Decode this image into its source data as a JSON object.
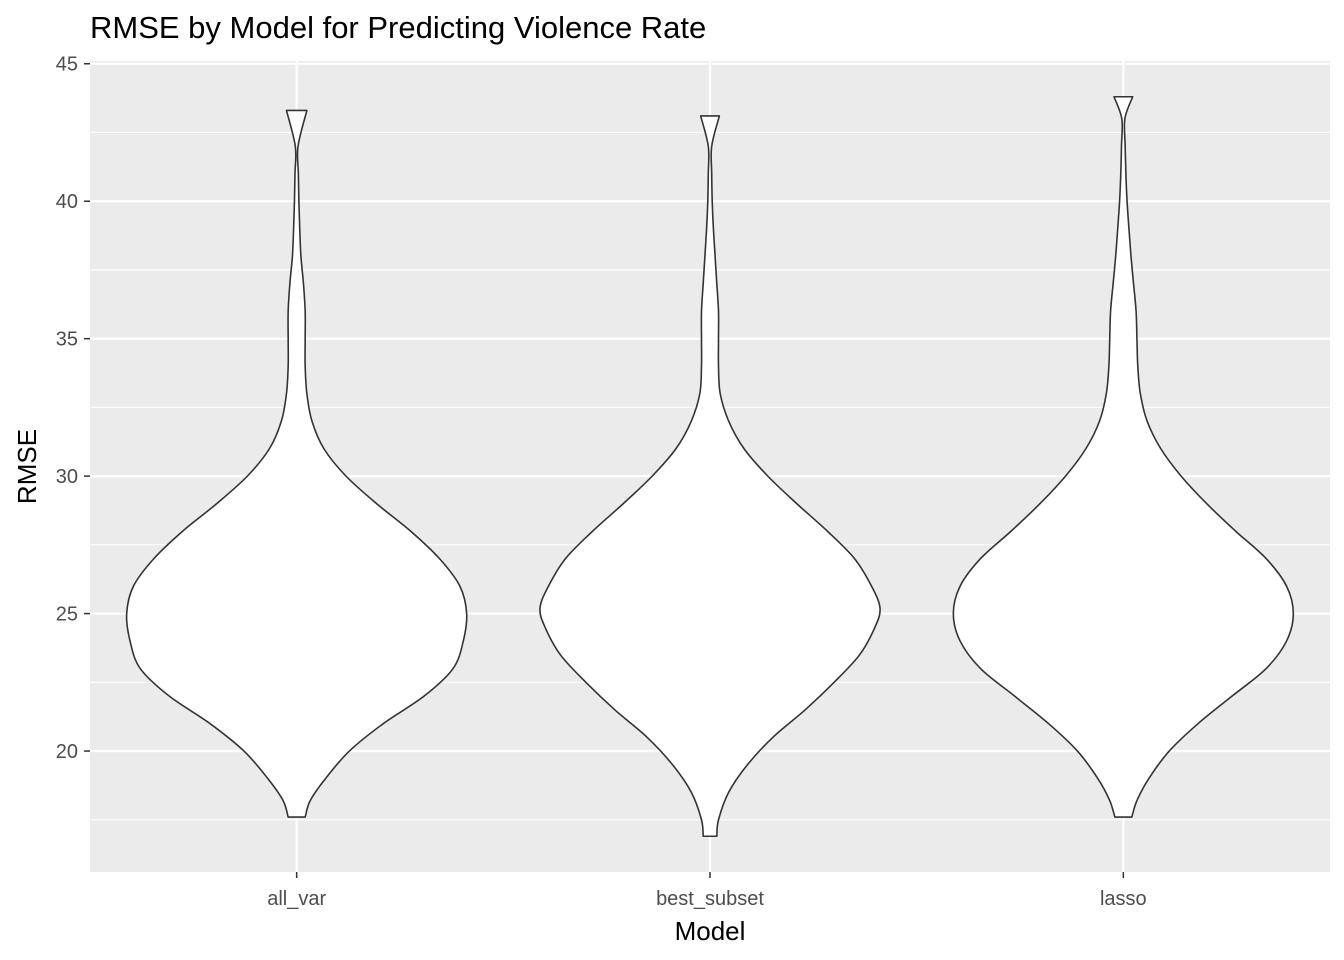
{
  "chart_data": {
    "type": "violin",
    "title": "RMSE by Model for Predicting Violence Rate",
    "xlabel": "Model",
    "ylabel": "RMSE",
    "categories": [
      "all_var",
      "best_subset",
      "lasso"
    ],
    "ylim": [
      15.6,
      45.1
    ],
    "yticks": [
      20,
      25,
      30,
      35,
      40,
      45
    ],
    "grid": true,
    "violins": [
      {
        "name": "all_var",
        "min": 17.6,
        "max": 43.3,
        "profile": [
          [
            17.6,
            0.05
          ],
          [
            18.2,
            0.08
          ],
          [
            19,
            0.17
          ],
          [
            20,
            0.31
          ],
          [
            21,
            0.51
          ],
          [
            22,
            0.75
          ],
          [
            23,
            0.92
          ],
          [
            24,
            0.98
          ],
          [
            25,
            1.0
          ],
          [
            26,
            0.96
          ],
          [
            27,
            0.84
          ],
          [
            28,
            0.67
          ],
          [
            29,
            0.47
          ],
          [
            30,
            0.29
          ],
          [
            31,
            0.16
          ],
          [
            32,
            0.09
          ],
          [
            33,
            0.06
          ],
          [
            34,
            0.05
          ],
          [
            35,
            0.05
          ],
          [
            36,
            0.05
          ],
          [
            37,
            0.04
          ],
          [
            38,
            0.025
          ],
          [
            39,
            0.018
          ],
          [
            40,
            0.013
          ],
          [
            41,
            0.01
          ],
          [
            42,
            0.008
          ],
          [
            43.3,
            0.06
          ]
        ]
      },
      {
        "name": "best_subset",
        "min": 16.9,
        "max": 43.1,
        "profile": [
          [
            16.9,
            0.04
          ],
          [
            17.5,
            0.05
          ],
          [
            18.5,
            0.11
          ],
          [
            19.5,
            0.22
          ],
          [
            20.5,
            0.37
          ],
          [
            21.5,
            0.56
          ],
          [
            22.5,
            0.73
          ],
          [
            23.5,
            0.88
          ],
          [
            24.5,
            0.97
          ],
          [
            25.2,
            1.0
          ],
          [
            26,
            0.95
          ],
          [
            27,
            0.85
          ],
          [
            28,
            0.69
          ],
          [
            29,
            0.51
          ],
          [
            30,
            0.34
          ],
          [
            31,
            0.2
          ],
          [
            32,
            0.11
          ],
          [
            33,
            0.06
          ],
          [
            34,
            0.05
          ],
          [
            35,
            0.05
          ],
          [
            36,
            0.05
          ],
          [
            37,
            0.04
          ],
          [
            38,
            0.03
          ],
          [
            39,
            0.02
          ],
          [
            40,
            0.013
          ],
          [
            41,
            0.01
          ],
          [
            42,
            0.01
          ],
          [
            43.1,
            0.055
          ]
        ]
      },
      {
        "name": "lasso",
        "min": 17.6,
        "max": 43.8,
        "profile": [
          [
            17.6,
            0.05
          ],
          [
            18.2,
            0.08
          ],
          [
            19,
            0.15
          ],
          [
            20,
            0.27
          ],
          [
            21,
            0.44
          ],
          [
            22,
            0.64
          ],
          [
            23,
            0.84
          ],
          [
            24,
            0.96
          ],
          [
            25,
            1.0
          ],
          [
            26,
            0.96
          ],
          [
            27,
            0.84
          ],
          [
            28,
            0.66
          ],
          [
            29,
            0.49
          ],
          [
            30,
            0.34
          ],
          [
            31,
            0.22
          ],
          [
            32,
            0.14
          ],
          [
            33,
            0.1
          ],
          [
            34,
            0.085
          ],
          [
            35,
            0.08
          ],
          [
            36,
            0.075
          ],
          [
            37,
            0.06
          ],
          [
            38,
            0.045
          ],
          [
            39,
            0.033
          ],
          [
            40,
            0.022
          ],
          [
            41,
            0.015
          ],
          [
            42,
            0.011
          ],
          [
            43,
            0.009
          ],
          [
            43.8,
            0.055
          ]
        ]
      }
    ]
  }
}
